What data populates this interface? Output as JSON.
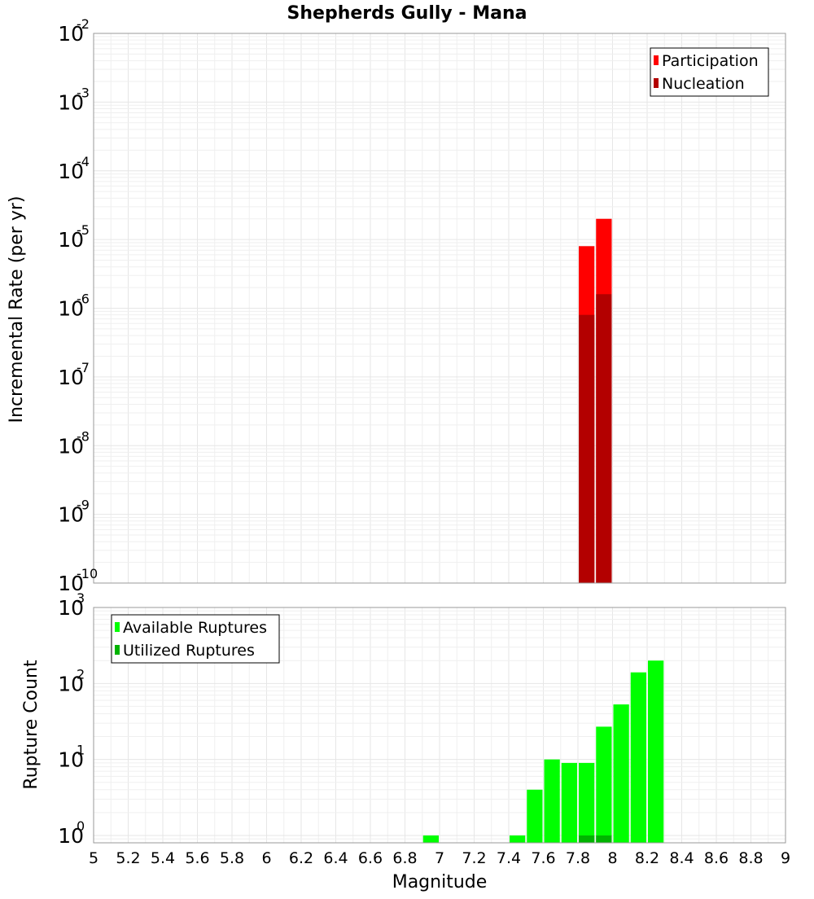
{
  "chart_data": [
    {
      "type": "bar",
      "title": "Shepherds Gully - Mana",
      "xlabel": "",
      "ylabel": "Incremental Rate (per yr)",
      "yscale": "log",
      "xlim": [
        5,
        9
      ],
      "ylim": [
        1e-10,
        0.01
      ],
      "y_tick_exponents": [
        -10,
        -9,
        -8,
        -7,
        -6,
        -5,
        -4,
        -3,
        -2
      ],
      "y_tick_base": "10",
      "grid": true,
      "legend_position": "top-right",
      "bin_width": 0.1,
      "series": [
        {
          "name": "Participation",
          "color": "#ff0000",
          "x": [
            7.85,
            7.95
          ],
          "values": [
            8e-06,
            2e-05
          ]
        },
        {
          "name": "Nucleation",
          "color": "#b30000",
          "x": [
            7.85,
            7.95
          ],
          "values": [
            8e-07,
            1.6e-06
          ]
        }
      ]
    },
    {
      "type": "bar",
      "title": "",
      "xlabel": "Magnitude",
      "ylabel": "Rupture Count",
      "yscale": "log",
      "xlim": [
        5,
        9
      ],
      "ylim": [
        0.8,
        1000
      ],
      "y_tick_exponents": [
        0,
        1,
        2,
        3
      ],
      "y_tick_base": "10",
      "x_ticks": [
        "5",
        "5.2",
        "5.4",
        "5.6",
        "5.8",
        "6",
        "6.2",
        "6.4",
        "6.6",
        "6.8",
        "7",
        "7.2",
        "7.4",
        "7.6",
        "7.8",
        "8",
        "8.2",
        "8.4",
        "8.6",
        "8.8",
        "9"
      ],
      "grid": true,
      "legend_position": "top-left",
      "bin_width": 0.1,
      "series": [
        {
          "name": "Available Ruptures",
          "color": "#00ff00",
          "x": [
            6.95,
            7.45,
            7.55,
            7.65,
            7.75,
            7.85,
            7.95,
            8.05,
            8.15,
            8.25
          ],
          "values": [
            1,
            1,
            4,
            10,
            9,
            9,
            27,
            53,
            140,
            200
          ]
        },
        {
          "name": "Utilized Ruptures",
          "color": "#00b300",
          "x": [
            7.85,
            7.95
          ],
          "values": [
            1,
            1
          ]
        }
      ]
    }
  ]
}
